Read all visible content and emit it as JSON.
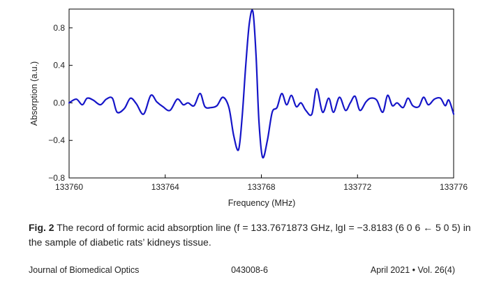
{
  "chart_data": {
    "type": "line",
    "title": "",
    "xlabel": "Frequency  (MHz)",
    "ylabel": "Absorption (a.u.)",
    "xlim": [
      133760,
      133776
    ],
    "ylim": [
      -0.8,
      1.0
    ],
    "x_ticks": [
      "133760",
      "133764",
      "133768",
      "133772",
      "133776"
    ],
    "y_ticks": [
      "0.8",
      "0.4",
      "0.0",
      "−0.4",
      "−0.8"
    ],
    "grid": false,
    "line_color": "#1515c8",
    "series": [
      {
        "x": [
          133760.0,
          133760.3,
          133760.55,
          133760.75,
          133761.0,
          133761.3,
          133761.55,
          133761.8,
          133762.0,
          133762.3,
          133762.55,
          133762.8,
          133763.1,
          133763.4,
          133763.65,
          133763.9,
          133764.2,
          133764.5,
          133764.75,
          133764.95,
          133765.2,
          133765.45,
          133765.65,
          133765.9,
          133766.15,
          133766.4,
          133766.65,
          133766.85,
          133767.05,
          133767.2,
          133767.35,
          133767.5,
          133767.65,
          133767.78,
          133767.9,
          133768.05,
          133768.25,
          133768.45,
          133768.65,
          133768.85,
          133769.05,
          133769.25,
          133769.45,
          133769.65,
          133769.85,
          133770.1,
          133770.3,
          133770.55,
          133770.8,
          133771.0,
          133771.25,
          133771.5,
          133771.7,
          133771.9,
          133772.1,
          133772.35,
          133772.55,
          133772.8,
          133773.05,
          133773.25,
          133773.45,
          133773.65,
          133773.9,
          133774.1,
          133774.3,
          133774.55,
          133774.75,
          133774.95,
          133775.2,
          133775.45,
          133775.65,
          133775.8,
          133776.0
        ],
        "y": [
          0.0,
          0.04,
          -0.02,
          0.05,
          0.03,
          -0.02,
          0.04,
          0.05,
          -0.1,
          -0.06,
          0.05,
          -0.01,
          -0.12,
          0.08,
          0.01,
          -0.04,
          -0.08,
          0.04,
          -0.02,
          0.0,
          -0.03,
          0.1,
          -0.04,
          -0.05,
          -0.03,
          0.06,
          -0.05,
          -0.35,
          -0.5,
          -0.15,
          0.4,
          0.85,
          0.97,
          0.5,
          -0.2,
          -0.58,
          -0.4,
          -0.1,
          -0.05,
          0.1,
          -0.02,
          0.08,
          -0.04,
          0.0,
          -0.08,
          -0.12,
          0.15,
          -0.1,
          0.05,
          -0.1,
          0.06,
          -0.08,
          0.0,
          0.07,
          -0.08,
          0.01,
          0.05,
          0.03,
          -0.1,
          0.08,
          -0.03,
          0.0,
          -0.05,
          0.05,
          -0.03,
          -0.04,
          0.06,
          -0.02,
          0.04,
          0.05,
          -0.03,
          0.03,
          -0.12
        ]
      }
    ]
  },
  "caption": {
    "label": "Fig. 2",
    "text": "The record of formic acid absorption line (f = 133.7671873 GHz, lgI = −3.8183 (6 0 6 ← 5 0 5) in the sample of diabetic rats’ kidneys tissue."
  },
  "footer": {
    "journal": "Journal of Biomedical Optics",
    "article_id": "043008-6",
    "date_volume": "April 2021  •  Vol. 26(4)"
  }
}
